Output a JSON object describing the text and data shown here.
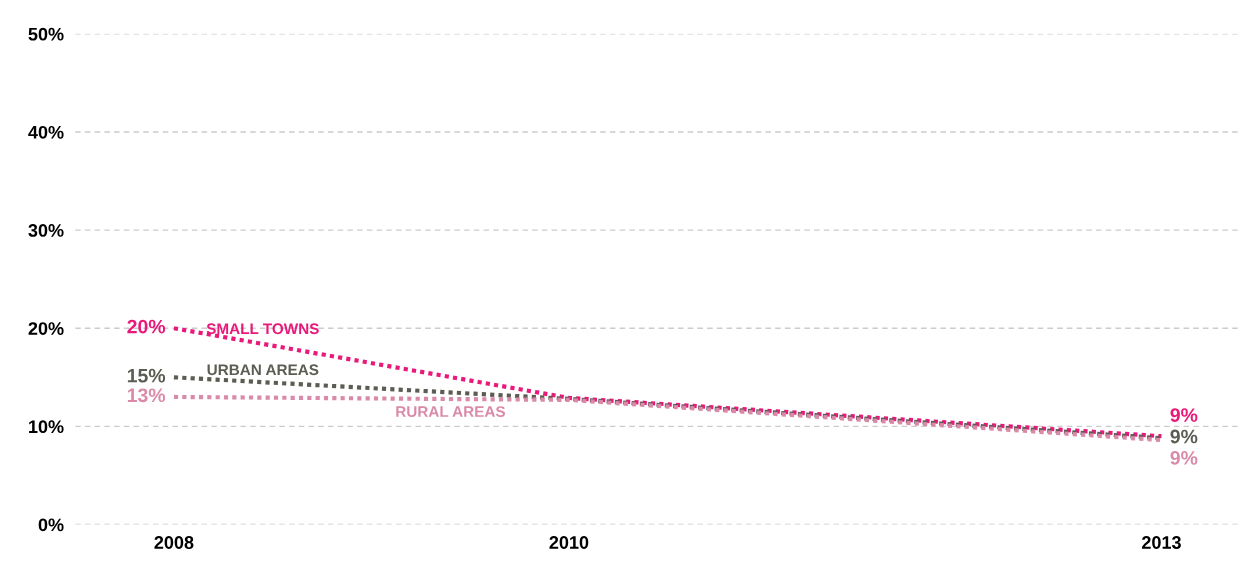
{
  "chart_data": {
    "type": "line",
    "x": [
      2008,
      2010,
      2013
    ],
    "series": [
      {
        "name": "SMALL TOWNS",
        "color": "#e8197a",
        "values": [
          20,
          12.9,
          9
        ],
        "value_labels": [
          "20%",
          null,
          "9%"
        ]
      },
      {
        "name": "URBAN AREAS",
        "color": "#5c5c52",
        "values": [
          15,
          12.8,
          8.8
        ],
        "value_labels": [
          "15%",
          null,
          "9%"
        ]
      },
      {
        "name": "RURAL AREAS",
        "color": "#d98aa8",
        "values": [
          13,
          12.7,
          8.6
        ],
        "value_labels": [
          "13%",
          null,
          "9%"
        ]
      }
    ],
    "xlim": [
      2007.5,
      2013.4
    ],
    "xticks": [
      2008,
      2010,
      2013
    ],
    "ylim": [
      0,
      50
    ],
    "yticks": [
      {
        "value": 0,
        "label": "0%"
      },
      {
        "value": 10,
        "label": "10%"
      },
      {
        "value": 20,
        "label": "20%"
      },
      {
        "value": 30,
        "label": "30%"
      },
      {
        "value": 40,
        "label": "40%"
      },
      {
        "value": 50,
        "label": "50%"
      }
    ],
    "grid": "y",
    "line_style": "dotted",
    "marker": "none",
    "legend": false
  }
}
